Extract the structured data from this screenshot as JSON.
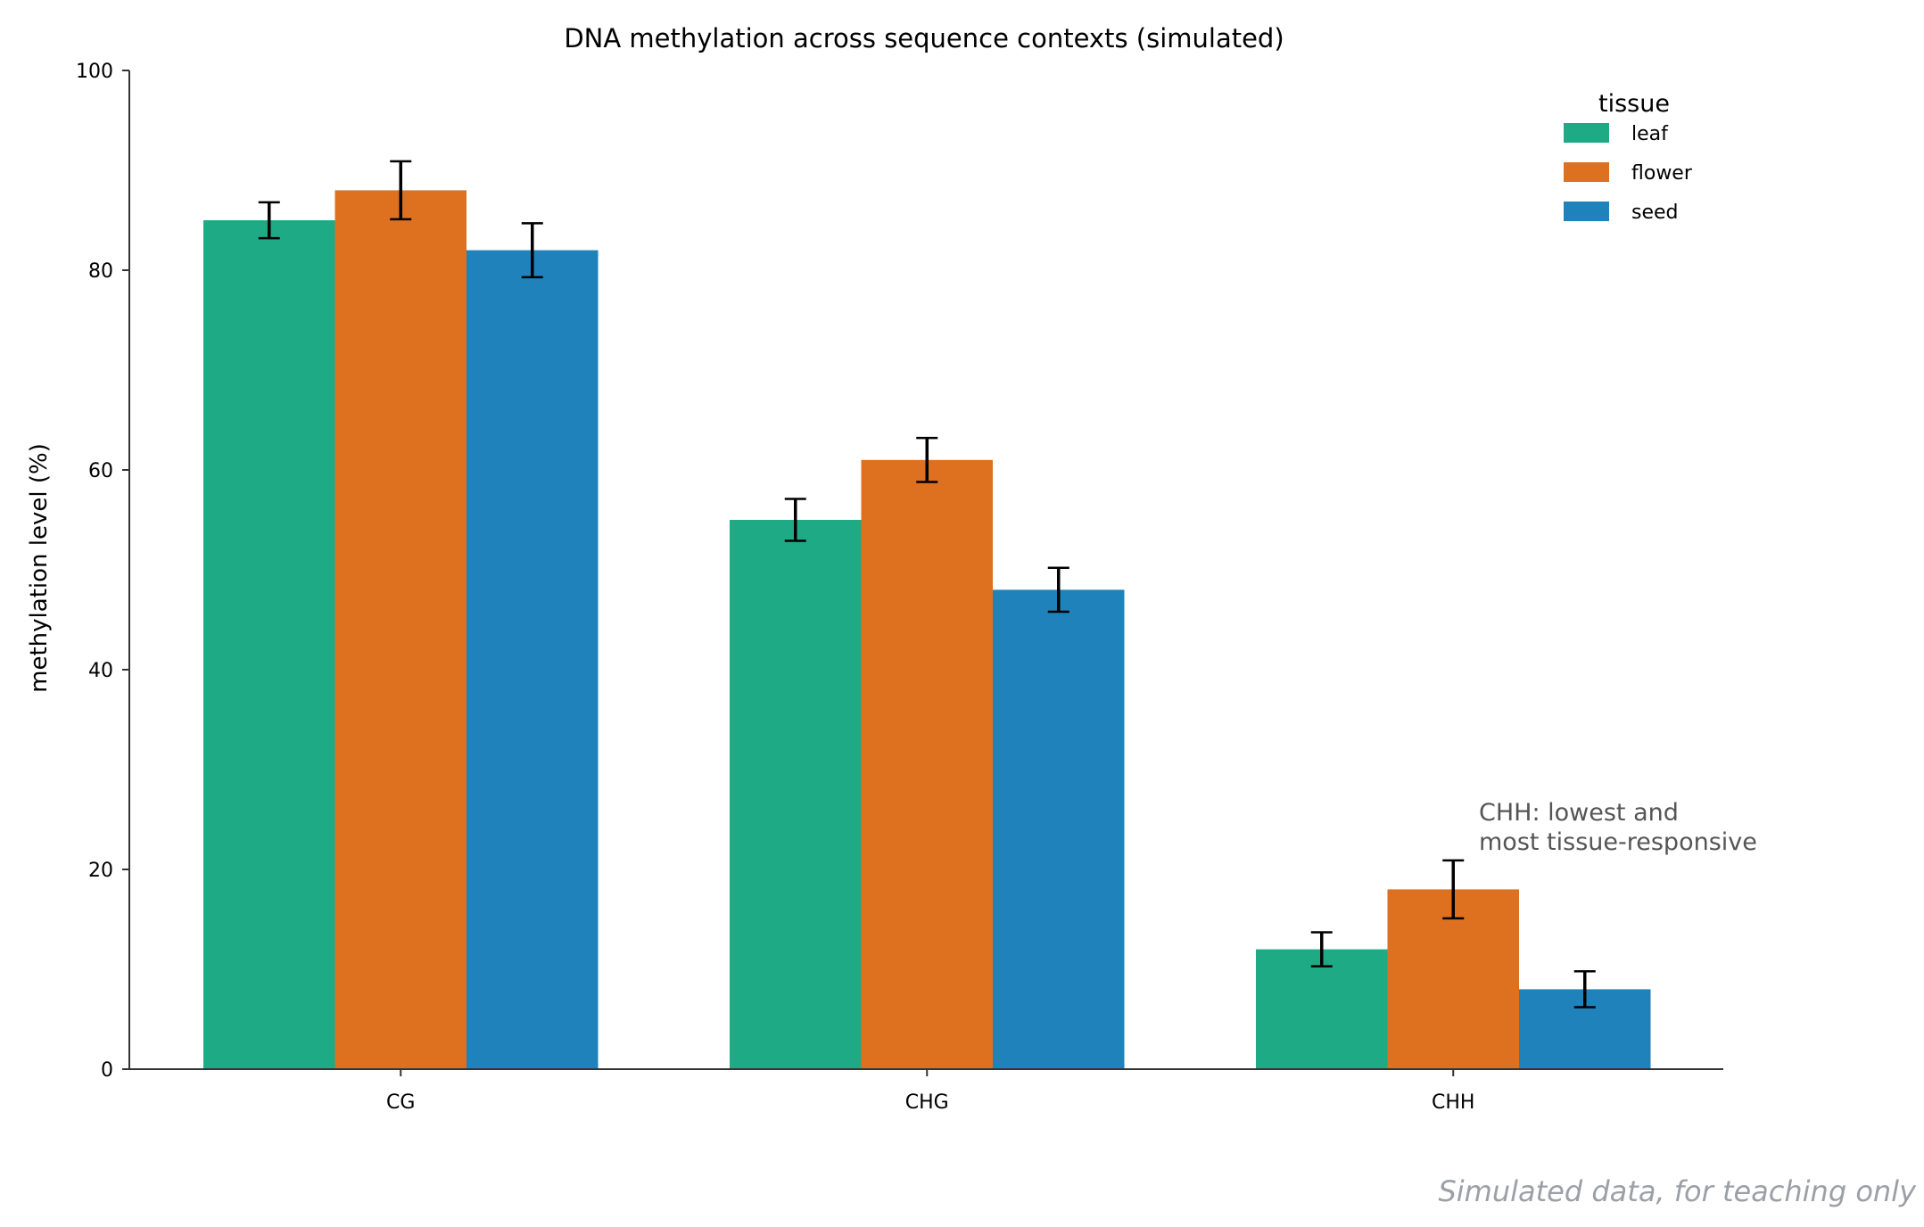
{
  "chart_data": {
    "type": "bar",
    "title": "DNA methylation across sequence contexts (simulated)",
    "xlabel": "",
    "ylabel": "methylation level (%)",
    "ylim": [
      0,
      100
    ],
    "yticks": [
      0,
      20,
      40,
      60,
      80,
      100
    ],
    "grid": false,
    "categories": [
      "CG",
      "CHG",
      "CHH"
    ],
    "legend": {
      "title": "tissue",
      "placement": "top-right"
    },
    "series": [
      {
        "name": "leaf",
        "color": "#1faa86",
        "values": [
          85,
          55,
          12
        ],
        "errors": [
          1.8,
          2.1,
          1.7
        ]
      },
      {
        "name": "flower",
        "color": "#dd7120",
        "values": [
          88,
          61,
          18
        ],
        "errors": [
          2.9,
          2.2,
          2.9
        ]
      },
      {
        "name": "seed",
        "color": "#1f82bb",
        "values": [
          82,
          48,
          8
        ],
        "errors": [
          2.7,
          2.2,
          1.8
        ]
      }
    ],
    "annotation": {
      "lines": [
        "CHH: lowest and",
        "most tissue-responsive"
      ],
      "category": "CHH"
    },
    "footer": "Simulated data, for teaching only"
  }
}
